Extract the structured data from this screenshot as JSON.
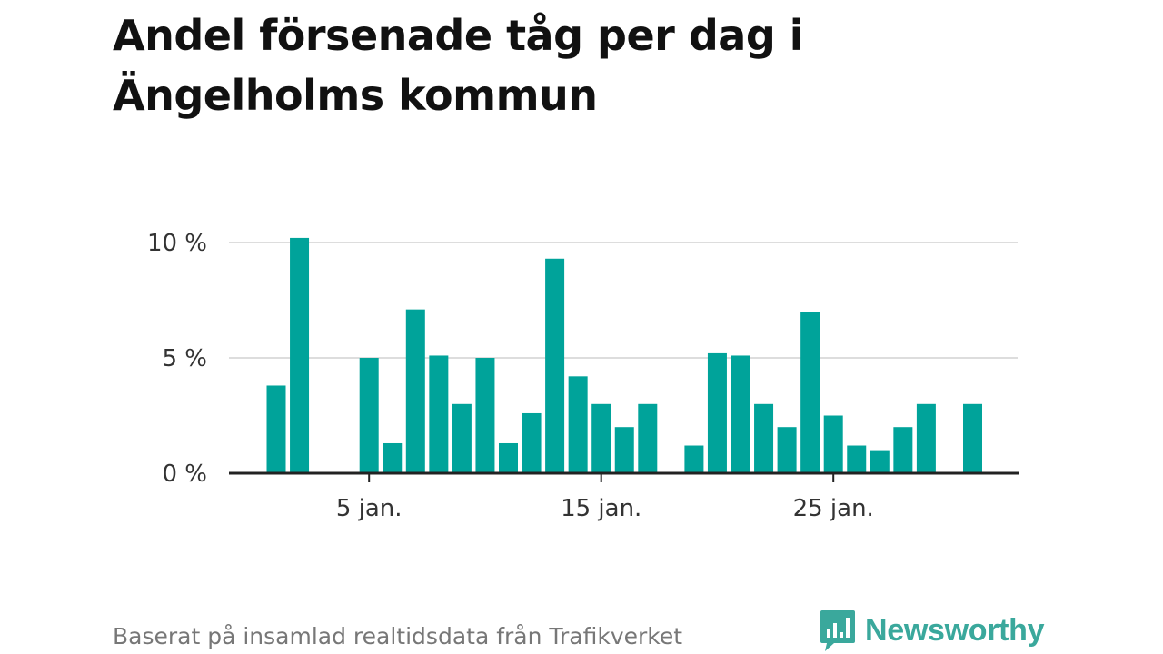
{
  "title_lines": [
    "Andel försenade tåg per dag i",
    "Ängelholms kommun"
  ],
  "footer": {
    "source": "Baserat på insamlad realtidsdata från Trafikverket",
    "brand": "Newsworthy"
  },
  "colors": {
    "bar": "#00a39a",
    "axis": "#222222",
    "grid": "#dddddd",
    "tick_text": "#333333",
    "brand": "#3aa89c"
  },
  "chart_data": {
    "type": "bar",
    "x_unit": "day of January",
    "x": [
      1,
      2,
      3,
      4,
      5,
      6,
      7,
      8,
      9,
      10,
      11,
      12,
      13,
      14,
      15,
      16,
      17,
      18,
      19,
      20,
      21,
      22,
      23,
      24,
      25,
      26,
      27,
      28,
      29,
      30,
      31
    ],
    "values": [
      3.8,
      10.2,
      0,
      0,
      5.0,
      1.3,
      7.1,
      5.1,
      3.0,
      5.0,
      1.3,
      2.6,
      9.3,
      4.2,
      3.0,
      2.0,
      3.0,
      0,
      1.2,
      5.2,
      5.1,
      3.0,
      2.0,
      7.0,
      2.5,
      1.2,
      1.0,
      2.0,
      3.0,
      0,
      3.0
    ],
    "ylim": [
      0,
      10.2
    ],
    "yticks": [
      {
        "value": 0,
        "label": "0 %"
      },
      {
        "value": 5,
        "label": "5 %"
      },
      {
        "value": 10,
        "label": "10 %"
      }
    ],
    "xticks": [
      {
        "value": 5,
        "label": "5 jan."
      },
      {
        "value": 15,
        "label": "15 jan."
      },
      {
        "value": 25,
        "label": "25 jan."
      }
    ],
    "grid": true
  }
}
